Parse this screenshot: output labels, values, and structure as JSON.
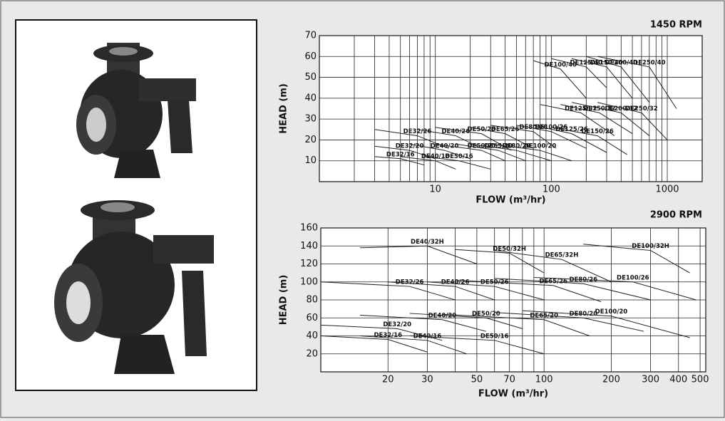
{
  "chart_data": [
    {
      "type": "line",
      "title": "1450 RPM",
      "x_label": "FLOW (m³/hr)",
      "y_label": "HEAD (m)",
      "log_x": true,
      "grid": true,
      "color": "#222222",
      "xlim": [
        1,
        2000
      ],
      "xticks": [
        10,
        100,
        1000
      ],
      "ylim": [
        0,
        70
      ],
      "yticks": [
        10,
        20,
        30,
        40,
        50,
        60,
        70
      ],
      "series": [
        {
          "name": "DE32/16",
          "x": [
            3,
            5,
            8
          ],
          "values": [
            12,
            11,
            8
          ]
        },
        {
          "name": "DE32/20",
          "x": [
            3,
            6,
            10
          ],
          "values": [
            17,
            15,
            11
          ]
        },
        {
          "name": "DE32/26",
          "x": [
            3,
            7,
            13
          ],
          "values": [
            25,
            22,
            16
          ]
        },
        {
          "name": "DE40/16",
          "x": [
            5,
            10,
            15
          ],
          "values": [
            12,
            10,
            6
          ]
        },
        {
          "name": "DE40/20",
          "x": [
            6,
            12,
            20
          ],
          "values": [
            18,
            15,
            11
          ]
        },
        {
          "name": "DE40/26",
          "x": [
            7,
            15,
            25
          ],
          "values": [
            25,
            22,
            16
          ]
        },
        {
          "name": "DE50/16",
          "x": [
            8,
            16,
            30
          ],
          "values": [
            12,
            10,
            6
          ]
        },
        {
          "name": "DE50/20",
          "x": [
            10,
            25,
            40
          ],
          "values": [
            18,
            15,
            10
          ]
        },
        {
          "name": "DE50/26",
          "x": [
            10,
            25,
            45
          ],
          "values": [
            26,
            23,
            15
          ]
        },
        {
          "name": "DE65/20",
          "x": [
            15,
            35,
            60
          ],
          "values": [
            18,
            15,
            10
          ]
        },
        {
          "name": "DE65/26",
          "x": [
            20,
            40,
            70
          ],
          "values": [
            26,
            23,
            16
          ]
        },
        {
          "name": "DE80/20",
          "x": [
            20,
            50,
            100
          ],
          "values": [
            18,
            15,
            10
          ]
        },
        {
          "name": "DE80/26",
          "x": [
            30,
            70,
            110
          ],
          "values": [
            27,
            24,
            16
          ]
        },
        {
          "name": "DE100/20",
          "x": [
            30,
            80,
            150
          ],
          "values": [
            18,
            15,
            10
          ]
        },
        {
          "name": "DE100/26",
          "x": [
            50,
            100,
            200
          ],
          "values": [
            27,
            24,
            16
          ]
        },
        {
          "name": "DE100/40",
          "x": [
            70,
            120,
            200
          ],
          "values": [
            58,
            54,
            40
          ]
        },
        {
          "name": "DE125/26",
          "x": [
            70,
            150,
            300
          ],
          "values": [
            27,
            23,
            14
          ]
        },
        {
          "name": "DE125/32",
          "x": [
            80,
            180,
            350
          ],
          "values": [
            37,
            33,
            22
          ]
        },
        {
          "name": "DE125/40",
          "x": [
            100,
            200,
            300
          ],
          "values": [
            59,
            55,
            45
          ]
        },
        {
          "name": "DE150/26",
          "x": [
            100,
            250,
            450
          ],
          "values": [
            26,
            22,
            13
          ]
        },
        {
          "name": "DE150/32",
          "x": [
            120,
            260,
            500
          ],
          "values": [
            37,
            33,
            23
          ]
        },
        {
          "name": "DE150/40",
          "x": [
            150,
            300,
            500
          ],
          "values": [
            59,
            55,
            40
          ]
        },
        {
          "name": "DE200/32",
          "x": [
            150,
            400,
            700
          ],
          "values": [
            38,
            33,
            22
          ]
        },
        {
          "name": "DE200/40",
          "x": [
            200,
            400,
            700
          ],
          "values": [
            60,
            55,
            38
          ]
        },
        {
          "name": "DE250/32",
          "x": [
            250,
            600,
            1000
          ],
          "values": [
            38,
            33,
            20
          ]
        },
        {
          "name": "DE250/40",
          "x": [
            250,
            700,
            1200
          ],
          "values": [
            60,
            55,
            35
          ]
        }
      ]
    },
    {
      "type": "line",
      "title": "2900 RPM",
      "x_label": "FLOW (m³/hr)",
      "y_label": "HEAD (m)",
      "log_x": true,
      "grid": true,
      "color": "#222222",
      "xlim": [
        10,
        530
      ],
      "xticks": [
        20,
        30,
        50,
        70,
        100,
        200,
        300,
        400,
        500
      ],
      "ylim": [
        0,
        160
      ],
      "yticks": [
        20,
        40,
        60,
        80,
        100,
        120,
        140,
        160
      ],
      "series": [
        {
          "name": "DE32/16",
          "x": [
            10,
            20,
            30
          ],
          "values": [
            40,
            36,
            22
          ]
        },
        {
          "name": "DE32/20",
          "x": [
            10,
            22,
            35
          ],
          "values": [
            52,
            48,
            35
          ]
        },
        {
          "name": "DE32/26",
          "x": [
            10,
            25,
            40
          ],
          "values": [
            100,
            95,
            80
          ]
        },
        {
          "name": "DE40/16",
          "x": [
            15,
            30,
            45
          ],
          "values": [
            40,
            35,
            20
          ]
        },
        {
          "name": "DE40/20",
          "x": [
            15,
            35,
            55
          ],
          "values": [
            63,
            58,
            45
          ]
        },
        {
          "name": "DE40/26",
          "x": [
            20,
            40,
            60
          ],
          "values": [
            100,
            95,
            80
          ]
        },
        {
          "name": "DE40/32H",
          "x": [
            15,
            30,
            50
          ],
          "values": [
            138,
            140,
            120
          ]
        },
        {
          "name": "DE50/16",
          "x": [
            25,
            60,
            100
          ],
          "values": [
            40,
            35,
            20
          ]
        },
        {
          "name": "DE50/20",
          "x": [
            25,
            55,
            80
          ],
          "values": [
            65,
            60,
            48
          ]
        },
        {
          "name": "DE50/26",
          "x": [
            30,
            60,
            100
          ],
          "values": [
            100,
            95,
            80
          ]
        },
        {
          "name": "DE50/32H",
          "x": [
            40,
            70,
            100
          ],
          "values": [
            136,
            132,
            110
          ]
        },
        {
          "name": "DE65/20",
          "x": [
            35,
            100,
            160
          ],
          "values": [
            64,
            58,
            40
          ]
        },
        {
          "name": "DE65/26",
          "x": [
            40,
            110,
            180
          ],
          "values": [
            102,
            96,
            78
          ]
        },
        {
          "name": "DE65/32H",
          "x": [
            60,
            120,
            200
          ],
          "values": [
            135,
            125,
            100
          ]
        },
        {
          "name": "DE80/20",
          "x": [
            60,
            150,
            280
          ],
          "values": [
            66,
            60,
            45
          ]
        },
        {
          "name": "DE80/26",
          "x": [
            60,
            150,
            300
          ],
          "values": [
            104,
            98,
            80
          ]
        },
        {
          "name": "DE100/20",
          "x": [
            80,
            200,
            450
          ],
          "values": [
            68,
            62,
            38
          ]
        },
        {
          "name": "DE100/26",
          "x": [
            90,
            250,
            480
          ],
          "values": [
            105,
            100,
            80
          ]
        },
        {
          "name": "DE100/32H",
          "x": [
            150,
            300,
            450
          ],
          "values": [
            142,
            135,
            110
          ]
        }
      ]
    }
  ]
}
